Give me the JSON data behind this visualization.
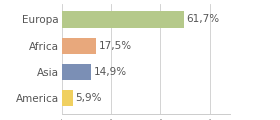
{
  "categories": [
    "Europa",
    "Africa",
    "Asia",
    "America"
  ],
  "values": [
    61.7,
    17.5,
    14.9,
    5.9
  ],
  "labels": [
    "61,7%",
    "17,5%",
    "14,9%",
    "5,9%"
  ],
  "bar_colors": [
    "#b5c98a",
    "#e8a87c",
    "#7b8fb5",
    "#f0d060"
  ],
  "background_color": "#ffffff",
  "xlim": [
    0,
    85
  ],
  "bar_height": 0.62,
  "label_fontsize": 7.5,
  "tick_fontsize": 7.5,
  "grid_color": "#cccccc",
  "text_color": "#555555"
}
